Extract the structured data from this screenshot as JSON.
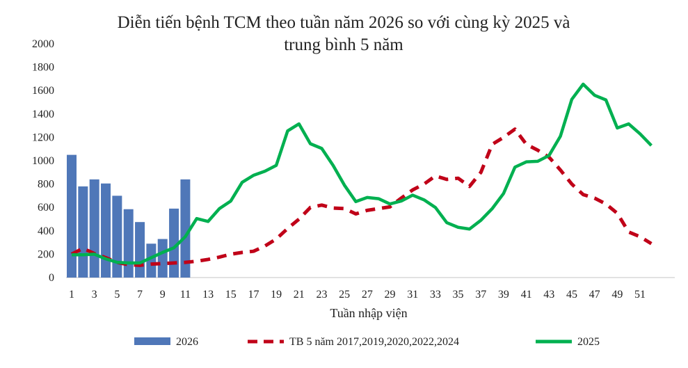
{
  "chart_data": {
    "type": "bar+line",
    "title_line1": "Diễn tiến bệnh TCM theo tuần năm 2026 so với cùng kỳ 2025 và",
    "title_line2": "trung bình 5 năm",
    "xlabel": "Tuần nhập viện",
    "ylabel": "",
    "ylim": [
      0,
      2000
    ],
    "yticks": [
      0,
      200,
      400,
      600,
      800,
      1000,
      1200,
      1400,
      1600,
      1800,
      2000
    ],
    "xticks": [
      1,
      3,
      5,
      7,
      9,
      11,
      13,
      15,
      17,
      19,
      21,
      23,
      25,
      27,
      29,
      31,
      33,
      35,
      37,
      39,
      41,
      43,
      45,
      47,
      49,
      51
    ],
    "weeks": 52,
    "grid": false,
    "legend_placement": "bottom",
    "series": [
      {
        "name": "2026",
        "kind": "bar",
        "color": "#4f77b8",
        "values": [
          1050,
          780,
          840,
          805,
          700,
          585,
          475,
          290,
          330,
          590,
          840
        ]
      },
      {
        "name": "TB 5 năm 2017,2019,2020,2022,2024",
        "kind": "dashed-line",
        "color": "#c00018",
        "values": [
          200,
          250,
          205,
          170,
          130,
          110,
          105,
          115,
          120,
          125,
          130,
          140,
          155,
          175,
          200,
          215,
          225,
          270,
          330,
          420,
          500,
          600,
          620,
          595,
          590,
          545,
          575,
          590,
          605,
          680,
          750,
          800,
          870,
          840,
          850,
          780,
          900,
          1140,
          1200,
          1270,
          1140,
          1090,
          1030,
          920,
          800,
          710,
          680,
          630,
          550,
          390,
          350,
          290
        ]
      },
      {
        "name": "2025",
        "kind": "line",
        "color": "#00b050",
        "values": [
          195,
          195,
          200,
          160,
          130,
          125,
          125,
          170,
          215,
          255,
          350,
          505,
          480,
          590,
          655,
          815,
          875,
          910,
          960,
          1255,
          1315,
          1145,
          1105,
          960,
          790,
          650,
          685,
          675,
          630,
          655,
          705,
          665,
          600,
          470,
          430,
          415,
          490,
          590,
          720,
          945,
          990,
          995,
          1045,
          1210,
          1525,
          1655,
          1560,
          1520,
          1280,
          1315,
          1230,
          1130
        ]
      }
    ]
  }
}
